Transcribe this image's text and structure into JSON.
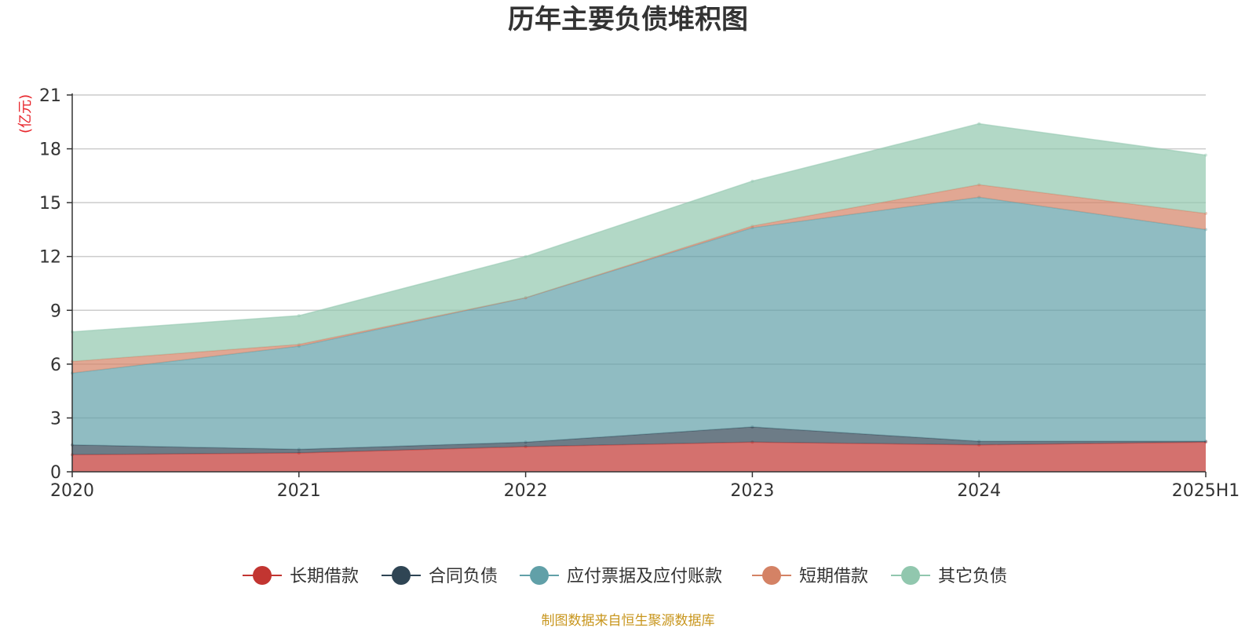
{
  "chart_data": {
    "type": "area",
    "stacked": true,
    "title": "历年主要负债堆积图",
    "unit": "(亿元)",
    "categories": [
      "2020",
      "2021",
      "2022",
      "2023",
      "2024",
      "2025H1"
    ],
    "ylim": [
      0,
      21
    ],
    "yticks": [
      "0",
      "3",
      "6",
      "9",
      "12",
      "15",
      "18",
      "21"
    ],
    "grid": true,
    "legend_position": "bottom",
    "series": [
      {
        "name": "长期借款",
        "color": "#c23531",
        "values": [
          0.95,
          1.05,
          1.4,
          1.65,
          1.5,
          1.65
        ]
      },
      {
        "name": "合同负债",
        "color": "#2f4554",
        "values": [
          0.55,
          0.2,
          0.25,
          0.85,
          0.2,
          0.05
        ]
      },
      {
        "name": "应付票据及应付账款",
        "color": "#61a0a8",
        "values": [
          4.0,
          5.75,
          8.05,
          11.1,
          13.6,
          11.8
        ]
      },
      {
        "name": "短期借款",
        "color": "#d48265",
        "values": [
          0.65,
          0.1,
          0.0,
          0.1,
          0.7,
          0.9
        ]
      },
      {
        "name": "其它负债",
        "color": "#91c7ae",
        "values": [
          1.65,
          1.6,
          2.3,
          2.5,
          3.4,
          3.25
        ]
      }
    ],
    "source": "制图数据来自恒生聚源数据库"
  }
}
